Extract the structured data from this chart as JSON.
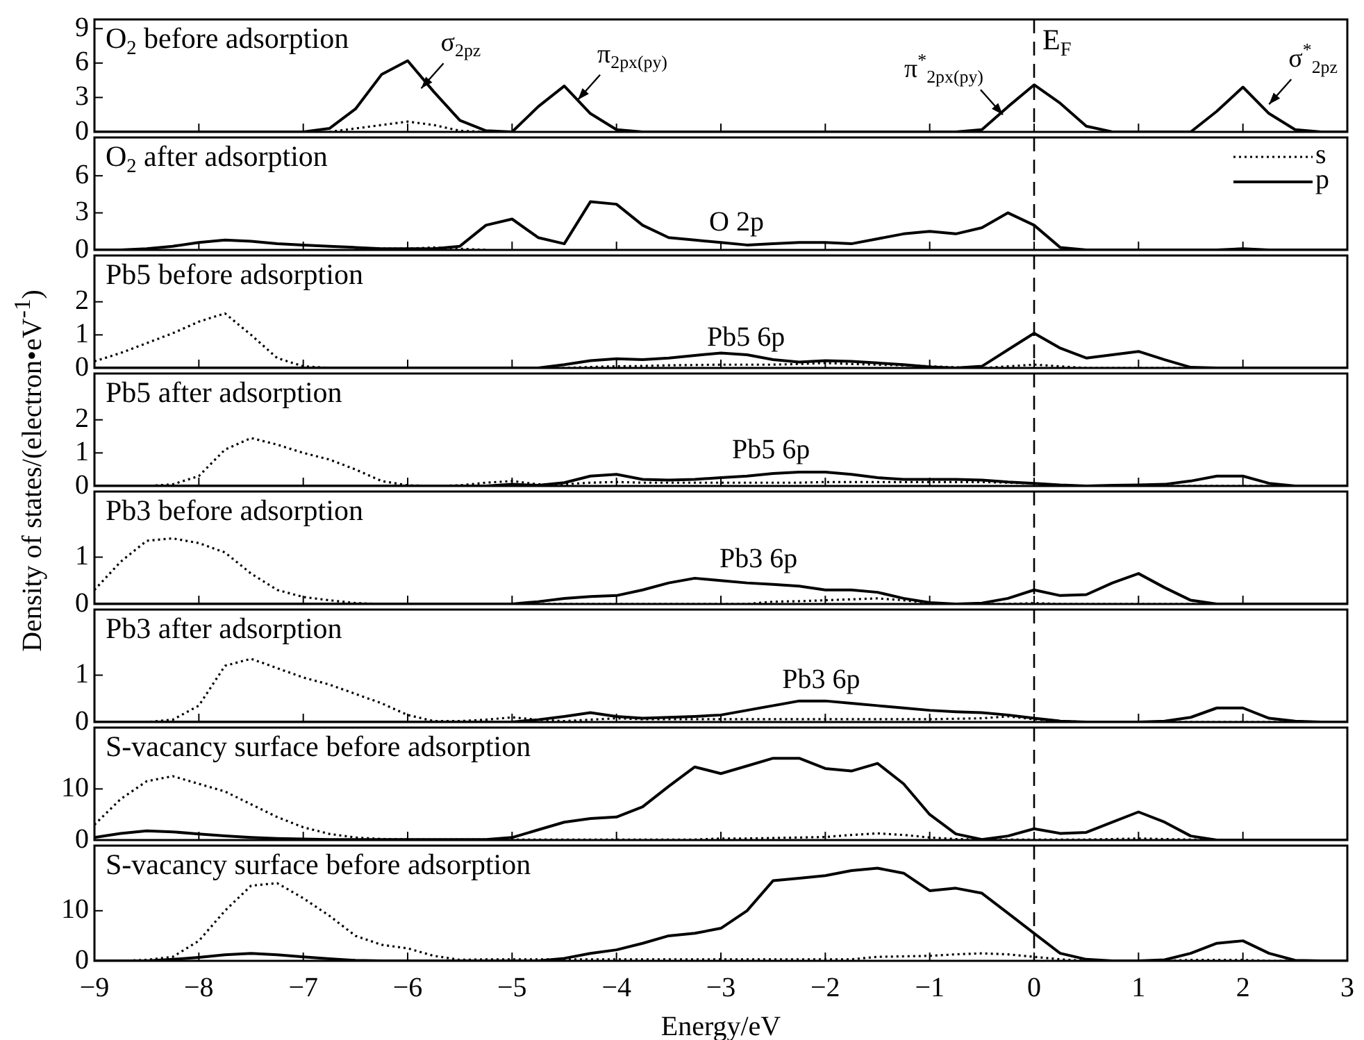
{
  "chart_data": [
    {
      "type": "line",
      "title": "O$_{2}$ before adsorption",
      "x": [
        -9,
        -8.75,
        -8.5,
        -8.25,
        -8,
        -7.75,
        -7.5,
        -7.25,
        -7,
        -6.75,
        -6.5,
        -6.25,
        -6,
        -5.75,
        -5.5,
        -5.25,
        -5,
        -4.75,
        -4.5,
        -4.25,
        -4,
        -3.75,
        -3.5,
        -3.25,
        -3,
        -2.75,
        -2.5,
        -2.25,
        -2,
        -1.75,
        -1.5,
        -1.25,
        -1,
        -0.75,
        -0.5,
        -0.25,
        0,
        0.25,
        0.5,
        0.75,
        1,
        1.25,
        1.5,
        1.75,
        2,
        2.25,
        2.5,
        2.75,
        3
      ],
      "xlim": [
        -9,
        3
      ],
      "xticks": [
        -9,
        -8,
        -7,
        -6,
        -5,
        -4,
        -3,
        -2,
        -1,
        0,
        1,
        2,
        3
      ],
      "ylim": [
        0,
        9.8
      ],
      "yticks": [
        0,
        3,
        6,
        9
      ],
      "tick_labels": "y",
      "series": [
        {
          "color": "#000000",
          "line_style": "dotted",
          "values": [
            null,
            null,
            null,
            null,
            null,
            null,
            null,
            null,
            null,
            0,
            0.3,
            0.6,
            0.9,
            0.6,
            0.1,
            0,
            null,
            null,
            null,
            null,
            null,
            null,
            null,
            null,
            null,
            null,
            null,
            null,
            null,
            null,
            null,
            null,
            null,
            null,
            null,
            null,
            null,
            null,
            null,
            null,
            null,
            null,
            null,
            null,
            null,
            null,
            null,
            null,
            null
          ]
        },
        {
          "color": "#000000",
          "line_style": "solid",
          "values": [
            0,
            0,
            0,
            0,
            0,
            0,
            0,
            0,
            0,
            0.3,
            2,
            5,
            6.2,
            3.5,
            1,
            0.1,
            0,
            2.2,
            4,
            1.6,
            0.2,
            0,
            0,
            0,
            0,
            0,
            0,
            0,
            0,
            0,
            0,
            0,
            0,
            0,
            0.2,
            2.2,
            4.1,
            2.5,
            0.5,
            0,
            0,
            0,
            0,
            1.8,
            3.9,
            1.6,
            0.2,
            0,
            0
          ]
        }
      ],
      "annotations": [
        {
          "text": "σ$_{2pz}$",
          "x": -5.87,
          "y": 3.8
        },
        {
          "text": "π$_{2px(py)}$",
          "x": -4.37,
          "y": 2.8
        },
        {
          "text": "π$^{*}$$_{2px(py)}$",
          "x": -0.3,
          "y": 1.5
        },
        {
          "text": "σ$^{*}$$_{2pz}$",
          "x": 2.25,
          "y": 2.4
        }
      ],
      "ref_lines": [
        {
          "axis": "x",
          "value": 0,
          "label": "E$_{F}$",
          "line_style": "dashed"
        }
      ]
    },
    {
      "type": "line",
      "title": "O$_{2}$ after adsorption",
      "x": [
        -9,
        -8.75,
        -8.5,
        -8.25,
        -8,
        -7.75,
        -7.5,
        -7.25,
        -7,
        -6.75,
        -6.5,
        -6.25,
        -6,
        -5.75,
        -5.5,
        -5.25,
        -5,
        -4.75,
        -4.5,
        -4.25,
        -4,
        -3.75,
        -3.5,
        -3.25,
        -3,
        -2.75,
        -2.5,
        -2.25,
        -2,
        -1.75,
        -1.5,
        -1.25,
        -1,
        -0.75,
        -0.5,
        -0.25,
        0,
        0.25,
        0.5,
        0.75,
        1,
        1.25,
        1.5,
        1.75,
        2,
        2.25,
        2.5,
        2.75,
        3
      ],
      "xlim": [
        -9,
        3
      ],
      "xticks": [
        -9,
        -8,
        -7,
        -6,
        -5,
        -4,
        -3,
        -2,
        -1,
        0,
        1,
        2,
        3
      ],
      "ylim": [
        0,
        9.1
      ],
      "yticks": [
        0,
        3,
        6
      ],
      "tick_labels": "y",
      "legend": "top right",
      "series": [
        {
          "name": "s",
          "color": "#000000",
          "line_style": "dotted",
          "values": [
            null,
            null,
            null,
            null,
            null,
            null,
            null,
            null,
            null,
            null,
            0,
            0.1,
            0.1,
            0.2,
            0.1,
            0,
            null,
            null,
            null,
            null,
            null,
            null,
            null,
            null,
            null,
            null,
            null,
            null,
            null,
            null,
            null,
            null,
            null,
            null,
            null,
            null,
            null,
            null,
            null,
            null,
            null,
            null,
            null,
            null,
            null,
            null,
            null,
            null,
            null
          ]
        },
        {
          "name": "p",
          "color": "#000000",
          "line_style": "solid",
          "values": [
            0,
            0,
            0.1,
            0.3,
            0.6,
            0.8,
            0.7,
            0.5,
            0.4,
            0.3,
            0.2,
            0.1,
            0.1,
            0.1,
            0.3,
            2,
            2.5,
            1,
            0.5,
            3.9,
            3.7,
            2,
            1,
            0.8,
            0.6,
            0.4,
            0.5,
            0.6,
            0.6,
            0.5,
            0.9,
            1.3,
            1.5,
            1.3,
            1.8,
            3,
            2,
            0.2,
            0,
            0,
            0,
            0,
            0,
            0,
            0.1,
            0,
            0,
            0,
            0
          ]
        }
      ],
      "annotations": [
        "O 2p"
      ],
      "ref_lines": [
        {
          "axis": "x",
          "value": 0,
          "line_style": "dashed"
        }
      ]
    },
    {
      "type": "line",
      "title": "Pb5 before adsorption",
      "x": [
        -9,
        -8.75,
        -8.5,
        -8.25,
        -8,
        -7.75,
        -7.5,
        -7.25,
        -7,
        -6.75,
        -6.5,
        -6.25,
        -6,
        -5.75,
        -5.5,
        -5.25,
        -5,
        -4.75,
        -4.5,
        -4.25,
        -4,
        -3.75,
        -3.5,
        -3.25,
        -3,
        -2.75,
        -2.5,
        -2.25,
        -2,
        -1.75,
        -1.5,
        -1.25,
        -1,
        -0.75,
        -0.5,
        -0.25,
        0,
        0.25,
        0.5,
        0.75,
        1,
        1.25,
        1.5,
        1.75,
        2,
        2.25,
        2.5,
        2.75,
        3
      ],
      "xlim": [
        -9,
        3
      ],
      "xticks": [
        -9,
        -8,
        -7,
        -6,
        -5,
        -4,
        -3,
        -2,
        -1,
        0,
        1,
        2,
        3
      ],
      "ylim": [
        0,
        3.4
      ],
      "yticks": [
        0,
        1,
        2
      ],
      "tick_labels": "y",
      "series": [
        {
          "color": "#000000",
          "line_style": "dotted",
          "values": [
            0.2,
            0.45,
            0.75,
            1.05,
            1.4,
            1.65,
            1,
            0.3,
            0.05,
            0,
            0,
            0,
            0,
            0,
            0,
            0,
            0,
            0,
            0,
            0.03,
            0.05,
            0.06,
            0.08,
            0.09,
            0.1,
            0.1,
            0.1,
            0.12,
            0.15,
            0.12,
            0.1,
            0.08,
            0.05,
            0.02,
            0,
            0.05,
            0.1,
            0.05,
            0,
            0,
            0,
            0,
            0,
            0,
            0,
            0,
            0,
            0,
            0
          ]
        },
        {
          "color": "#000000",
          "line_style": "solid",
          "values": [
            0,
            0,
            0,
            0,
            0,
            0,
            0,
            0,
            0,
            0,
            0,
            0,
            0,
            0,
            0,
            0,
            0,
            0,
            0.1,
            0.22,
            0.28,
            0.25,
            0.3,
            0.38,
            0.45,
            0.4,
            0.25,
            0.18,
            0.22,
            0.2,
            0.15,
            0.1,
            0.03,
            0,
            0.05,
            0.55,
            1.05,
            0.6,
            0.3,
            0.4,
            0.5,
            0.25,
            0.02,
            0,
            0,
            0,
            0,
            0,
            0
          ]
        }
      ],
      "annotations": [
        "Pb5 6p"
      ],
      "ref_lines": [
        {
          "axis": "x",
          "value": 0,
          "line_style": "dashed"
        }
      ]
    },
    {
      "type": "line",
      "title": "Pb5 after adsorption",
      "ylabel": "Density of states/(electron•eV$^{-1}$)",
      "x": [
        -9,
        -8.75,
        -8.5,
        -8.25,
        -8,
        -7.75,
        -7.5,
        -7.25,
        -7,
        -6.75,
        -6.5,
        -6.25,
        -6,
        -5.75,
        -5.5,
        -5.25,
        -5,
        -4.75,
        -4.5,
        -4.25,
        -4,
        -3.75,
        -3.5,
        -3.25,
        -3,
        -2.75,
        -2.5,
        -2.25,
        -2,
        -1.75,
        -1.5,
        -1.25,
        -1,
        -0.75,
        -0.5,
        -0.25,
        0,
        0.25,
        0.5,
        0.75,
        1,
        1.25,
        1.5,
        1.75,
        2,
        2.25,
        2.5,
        2.75,
        3
      ],
      "xlim": [
        -9,
        3
      ],
      "xticks": [
        -9,
        -8,
        -7,
        -6,
        -5,
        -4,
        -3,
        -2,
        -1,
        0,
        1,
        2,
        3
      ],
      "ylim": [
        0,
        3.4
      ],
      "yticks": [
        0,
        1,
        2
      ],
      "tick_labels": "y",
      "series": [
        {
          "color": "#000000",
          "line_style": "dotted",
          "values": [
            0,
            0,
            0,
            0.05,
            0.3,
            1.1,
            1.45,
            1.25,
            1,
            0.8,
            0.5,
            0.15,
            0.02,
            0,
            0.02,
            0.1,
            0.15,
            0.05,
            0.05,
            0.1,
            0.12,
            0.1,
            0.1,
            0.1,
            0.1,
            0.1,
            0.1,
            0.1,
            0.12,
            0.12,
            0.12,
            0.12,
            0.12,
            0.12,
            0.12,
            0.1,
            0.08,
            0.02,
            0,
            0,
            0,
            0,
            0,
            0,
            0,
            0,
            0,
            0,
            0
          ]
        },
        {
          "color": "#000000",
          "line_style": "solid",
          "values": [
            0,
            0,
            0,
            0,
            0,
            0,
            0,
            0,
            0,
            0,
            0,
            0,
            0,
            0,
            0,
            0,
            0.05,
            0.02,
            0.1,
            0.3,
            0.35,
            0.2,
            0.18,
            0.2,
            0.25,
            0.3,
            0.38,
            0.42,
            0.42,
            0.35,
            0.25,
            0.2,
            0.2,
            0.2,
            0.18,
            0.12,
            0.08,
            0.03,
            0,
            0.02,
            0.03,
            0.05,
            0.15,
            0.3,
            0.3,
            0.08,
            0,
            0,
            0
          ]
        }
      ],
      "annotations": [
        "Pb5 6p"
      ],
      "ref_lines": [
        {
          "axis": "x",
          "value": 0,
          "line_style": "dashed"
        }
      ]
    },
    {
      "type": "line",
      "title": "Pb3 before adsorption",
      "x": [
        -9,
        -8.75,
        -8.5,
        -8.25,
        -8,
        -7.75,
        -7.5,
        -7.25,
        -7,
        -6.75,
        -6.5,
        -6.25,
        -6,
        -5.75,
        -5.5,
        -5.25,
        -5,
        -4.75,
        -4.5,
        -4.25,
        -4,
        -3.75,
        -3.5,
        -3.25,
        -3,
        -2.75,
        -2.5,
        -2.25,
        -2,
        -1.75,
        -1.5,
        -1.25,
        -1,
        -0.75,
        -0.5,
        -0.25,
        0,
        0.25,
        0.5,
        0.75,
        1,
        1.25,
        1.5,
        1.75,
        2,
        2.25,
        2.5,
        2.75,
        3
      ],
      "xlim": [
        -9,
        3
      ],
      "xticks": [
        -9,
        -8,
        -7,
        -6,
        -5,
        -4,
        -3,
        -2,
        -1,
        0,
        1,
        2,
        3
      ],
      "ylim": [
        0,
        2.4
      ],
      "yticks": [
        0,
        1
      ],
      "tick_labels": "y",
      "series": [
        {
          "color": "#000000",
          "line_style": "dotted",
          "values": [
            0.3,
            0.9,
            1.35,
            1.4,
            1.3,
            1.1,
            0.65,
            0.3,
            0.15,
            0.08,
            0.02,
            0,
            0,
            0,
            0,
            0,
            0,
            0,
            0,
            0,
            0,
            0,
            0,
            0,
            0,
            0,
            0.05,
            0.06,
            0.08,
            0.1,
            0.12,
            0.08,
            0.02,
            0,
            0,
            0,
            0.02,
            0,
            0,
            0,
            0,
            0,
            0,
            0,
            0,
            0,
            0,
            0,
            0
          ]
        },
        {
          "color": "#000000",
          "line_style": "solid",
          "values": [
            0,
            0,
            0,
            0,
            0,
            0,
            0,
            0,
            0,
            0,
            0,
            0,
            0,
            0,
            0,
            0,
            0,
            0.05,
            0.12,
            0.16,
            0.18,
            0.3,
            0.45,
            0.55,
            0.5,
            0.45,
            0.42,
            0.38,
            0.3,
            0.3,
            0.25,
            0.12,
            0.03,
            0,
            0.02,
            0.12,
            0.3,
            0.18,
            0.2,
            0.45,
            0.65,
            0.35,
            0.08,
            0,
            0,
            0,
            0,
            0,
            0
          ]
        }
      ],
      "annotations": [
        "Pb3 6p"
      ],
      "ref_lines": [
        {
          "axis": "x",
          "value": 0,
          "line_style": "dashed"
        }
      ]
    },
    {
      "type": "line",
      "title": "Pb3 after adsorption",
      "x": [
        -9,
        -8.75,
        -8.5,
        -8.25,
        -8,
        -7.75,
        -7.5,
        -7.25,
        -7,
        -6.75,
        -6.5,
        -6.25,
        -6,
        -5.75,
        -5.5,
        -5.25,
        -5,
        -4.75,
        -4.5,
        -4.25,
        -4,
        -3.75,
        -3.5,
        -3.25,
        -3,
        -2.75,
        -2.5,
        -2.25,
        -2,
        -1.75,
        -1.5,
        -1.25,
        -1,
        -0.75,
        -0.5,
        -0.25,
        0,
        0.25,
        0.5,
        0.75,
        1,
        1.25,
        1.5,
        1.75,
        2,
        2.25,
        2.5,
        2.75,
        3
      ],
      "xlim": [
        -9,
        3
      ],
      "xticks": [
        -9,
        -8,
        -7,
        -6,
        -5,
        -4,
        -3,
        -2,
        -1,
        0,
        1,
        2,
        3
      ],
      "ylim": [
        0,
        2.4
      ],
      "yticks": [
        0,
        1
      ],
      "tick_labels": "y",
      "series": [
        {
          "color": "#000000",
          "line_style": "dotted",
          "values": [
            0,
            0,
            0,
            0.05,
            0.35,
            1.2,
            1.35,
            1.15,
            0.95,
            0.8,
            0.6,
            0.4,
            0.15,
            0.02,
            0.02,
            0.05,
            0.1,
            0.05,
            0.02,
            0.05,
            0.08,
            0.06,
            0.06,
            0.06,
            0.06,
            0.06,
            0.06,
            0.06,
            0.06,
            0.06,
            0.06,
            0.06,
            0.06,
            0.07,
            0.08,
            0.12,
            0.06,
            0.02,
            0,
            0,
            0,
            0,
            0,
            0,
            0,
            0,
            0,
            0,
            0
          ]
        },
        {
          "color": "#000000",
          "line_style": "solid",
          "values": [
            0,
            0,
            0,
            0,
            0,
            0,
            0,
            0,
            0,
            0,
            0,
            0,
            0,
            0,
            0,
            0,
            0,
            0.05,
            0.12,
            0.2,
            0.12,
            0.08,
            0.1,
            0.12,
            0.15,
            0.25,
            0.35,
            0.45,
            0.45,
            0.4,
            0.35,
            0.3,
            0.25,
            0.22,
            0.2,
            0.15,
            0.08,
            0.02,
            0,
            0,
            0,
            0.02,
            0.1,
            0.3,
            0.3,
            0.08,
            0.02,
            0,
            0
          ]
        }
      ],
      "annotations": [
        "Pb3 6p"
      ],
      "ref_lines": [
        {
          "axis": "x",
          "value": 0,
          "line_style": "dashed"
        }
      ]
    },
    {
      "type": "line",
      "title": "S-vacancy surface before adsorption",
      "x": [
        -9,
        -8.75,
        -8.5,
        -8.25,
        -8,
        -7.75,
        -7.5,
        -7.25,
        -7,
        -6.75,
        -6.5,
        -6.25,
        -6,
        -5.75,
        -5.5,
        -5.25,
        -5,
        -4.75,
        -4.5,
        -4.25,
        -4,
        -3.75,
        -3.5,
        -3.25,
        -3,
        -2.75,
        -2.5,
        -2.25,
        -2,
        -1.75,
        -1.5,
        -1.25,
        -1,
        -0.75,
        -0.5,
        -0.25,
        0,
        0.25,
        0.5,
        0.75,
        1,
        1.25,
        1.5,
        1.75,
        2,
        2.25,
        2.5,
        2.75,
        3
      ],
      "xlim": [
        -9,
        3
      ],
      "xticks": [
        -9,
        -8,
        -7,
        -6,
        -5,
        -4,
        -3,
        -2,
        -1,
        0,
        1,
        2,
        3
      ],
      "ylim": [
        0,
        22
      ],
      "yticks": [
        0,
        10
      ],
      "tick_labels": "y",
      "series": [
        {
          "color": "#000000",
          "line_style": "dotted",
          "values": [
            3,
            8,
            11.5,
            12.5,
            11,
            9.5,
            7,
            4.5,
            2.5,
            1.2,
            0.5,
            0.2,
            0.1,
            0.1,
            0.1,
            0.1,
            0.1,
            0.1,
            0.1,
            0.1,
            0.1,
            0.1,
            0.1,
            0.1,
            0.3,
            0.3,
            0.4,
            0.5,
            0.6,
            1,
            1.3,
            1,
            0.5,
            0.2,
            0.1,
            0.1,
            0.1,
            0.1,
            0.1,
            0.2,
            0.3,
            0.2,
            0.1,
            0,
            0,
            0,
            0,
            0,
            0
          ]
        },
        {
          "color": "#000000",
          "line_style": "solid",
          "values": [
            0.5,
            1.3,
            1.8,
            1.6,
            1.2,
            0.8,
            0.5,
            0.3,
            0.2,
            0.1,
            0.1,
            0.1,
            0.1,
            0.1,
            0.1,
            0.1,
            0.5,
            2,
            3.5,
            4.2,
            4.5,
            6.5,
            10.5,
            14.3,
            13,
            14.5,
            16,
            16,
            14,
            13.5,
            15,
            11,
            5,
            1.2,
            0.1,
            0.8,
            2.2,
            1.3,
            1.5,
            3.5,
            5.5,
            3.5,
            0.8,
            0,
            0,
            0,
            0,
            0,
            0
          ]
        }
      ],
      "ref_lines": [
        {
          "axis": "x",
          "value": 0,
          "line_style": "dashed"
        }
      ]
    },
    {
      "type": "line",
      "title": "S-vacancy surface before adsorption",
      "xlabel": "Energy/eV",
      "x": [
        -9,
        -8.75,
        -8.5,
        -8.25,
        -8,
        -7.75,
        -7.5,
        -7.25,
        -7,
        -6.75,
        -6.5,
        -6.25,
        -6,
        -5.75,
        -5.5,
        -5.25,
        -5,
        -4.75,
        -4.5,
        -4.25,
        -4,
        -3.75,
        -3.5,
        -3.25,
        -3,
        -2.75,
        -2.5,
        -2.25,
        -2,
        -1.75,
        -1.5,
        -1.25,
        -1,
        -0.75,
        -0.5,
        -0.25,
        0,
        0.25,
        0.5,
        0.75,
        1,
        1.25,
        1.5,
        1.75,
        2,
        2.25,
        2.5,
        2.75,
        3
      ],
      "xlim": [
        -9,
        3
      ],
      "xticks": [
        -9,
        -8,
        -7,
        -6,
        -5,
        -4,
        -3,
        -2,
        -1,
        0,
        1,
        2,
        3
      ],
      "ylim": [
        0,
        23
      ],
      "yticks": [
        0,
        10
      ],
      "series": [
        {
          "color": "#000000",
          "line_style": "dotted",
          "values": [
            0,
            0,
            0.2,
            0.8,
            4,
            10,
            15,
            15.5,
            12.5,
            9,
            5,
            3.2,
            2.5,
            1,
            0.2,
            0.3,
            0.3,
            0.3,
            0.3,
            0.3,
            0.3,
            0.3,
            0.3,
            0.3,
            0.3,
            0.3,
            0.3,
            0.3,
            0.3,
            0.3,
            0.8,
            0.9,
            1,
            1.3,
            1.5,
            1.3,
            0.8,
            0.3,
            0,
            0,
            0,
            0,
            0.2,
            0.2,
            0.2,
            0,
            0,
            0,
            0
          ]
        },
        {
          "color": "#000000",
          "line_style": "solid",
          "values": [
            0,
            0,
            0,
            0.3,
            0.7,
            1.2,
            1.5,
            1.2,
            0.8,
            0.4,
            0.1,
            0,
            0,
            0,
            0,
            0,
            0,
            0,
            0.5,
            1.5,
            2.2,
            3.5,
            5,
            5.5,
            6.5,
            10,
            16,
            16.5,
            17,
            18,
            18.5,
            17.5,
            14,
            14.5,
            13.5,
            9.5,
            5.5,
            1.5,
            0.3,
            0,
            0,
            0.2,
            1.5,
            3.5,
            4,
            1.5,
            0.1,
            0,
            0
          ]
        }
      ],
      "ref_lines": [
        {
          "axis": "x",
          "value": 0,
          "line_style": "dashed"
        }
      ]
    }
  ]
}
